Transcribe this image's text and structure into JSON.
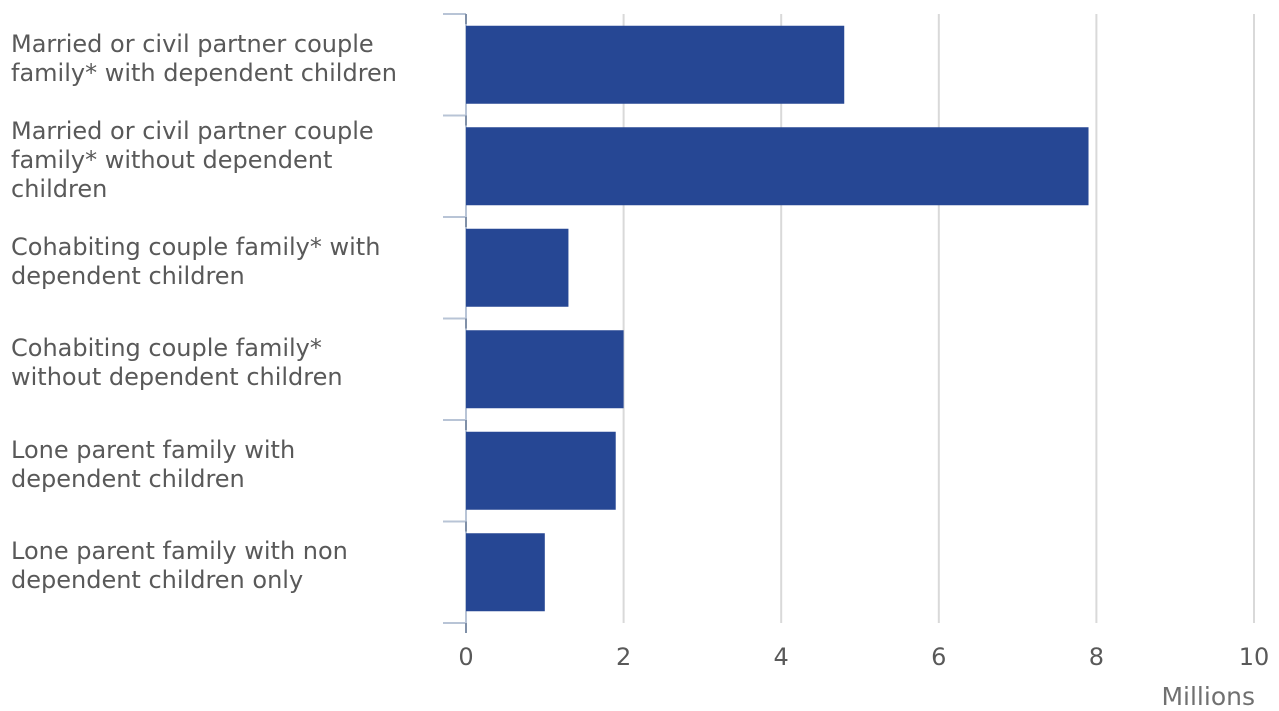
{
  "chart_data": {
    "type": "bar",
    "orientation": "horizontal",
    "categories": [
      "Married or civil partner couple family* with dependent children",
      "Married or civil partner couple family* without dependent children",
      "Cohabiting couple family* with dependent children",
      "Cohabiting couple family* without dependent children",
      "Lone parent family with dependent children",
      "Lone parent family with non dependent children only"
    ],
    "category_lines": [
      [
        "Married or civil partner couple",
        "family* with dependent children"
      ],
      [
        "Married or civil partner couple",
        "family* without dependent",
        "children"
      ],
      [
        "Cohabiting couple family* with",
        "dependent children"
      ],
      [
        "Cohabiting couple family*",
        "without dependent children"
      ],
      [
        "Lone parent family with",
        "dependent children"
      ],
      [
        "Lone parent family with non",
        "dependent children only"
      ]
    ],
    "values": [
      4.8,
      7.9,
      1.3,
      2.0,
      1.9,
      1.0
    ],
    "x_ticks": [
      "0",
      "2",
      "4",
      "6",
      "8",
      "10"
    ],
    "xlim": [
      0,
      10
    ],
    "xlabel": "Millions",
    "grid": true,
    "colors": {
      "bar": "#264794",
      "grid": "#d9d9d9",
      "axis": "#b8c4d6",
      "text": "#595959"
    }
  }
}
